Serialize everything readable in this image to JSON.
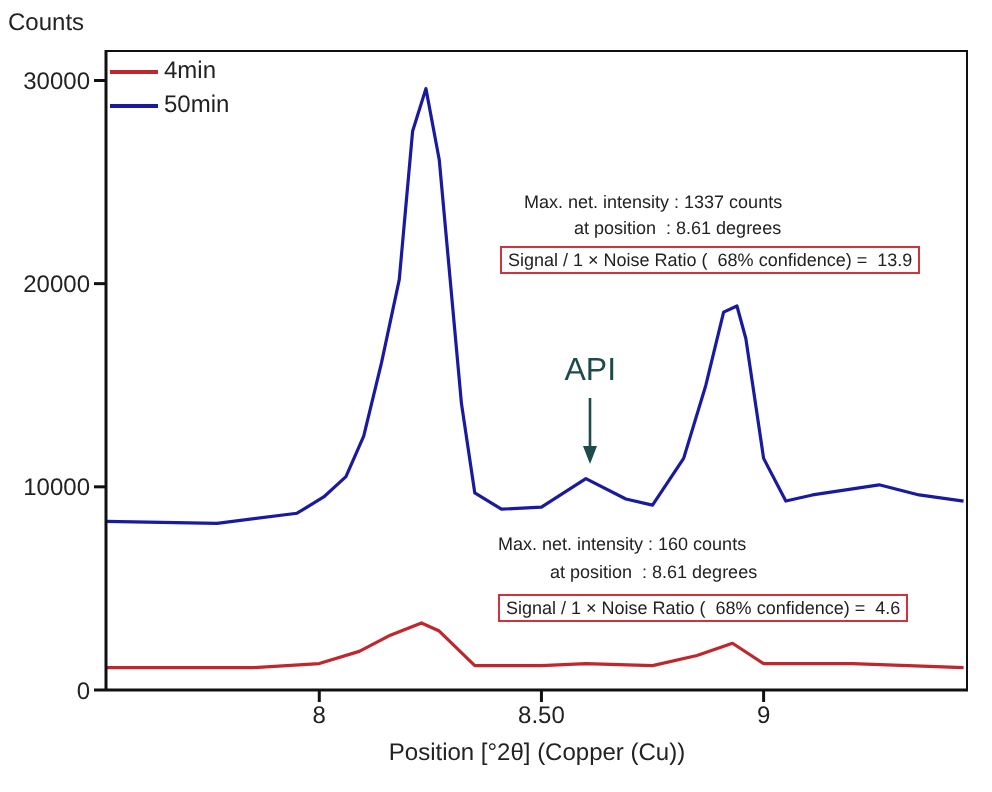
{
  "chart_data": {
    "type": "line",
    "xlabel": "Position [°2θ] (Copper (Cu))",
    "ylabel": "Counts",
    "xlim": [
      7.52,
      9.46
    ],
    "xticks": [
      8,
      {
        "value": 8.5,
        "label": "8.50"
      },
      9
    ],
    "ylim": [
      0,
      31500
    ],
    "yticks": [
      0,
      10000,
      20000,
      30000
    ],
    "grid": false,
    "legend": "top left",
    "marker": "none",
    "line_style": "solid",
    "series": [
      {
        "name": "4min",
        "color": "#c0272d",
        "x": [
          7.52,
          7.85,
          8.0,
          8.09,
          8.16,
          8.23,
          8.27,
          8.35,
          8.5,
          8.6,
          8.75,
          8.85,
          8.93,
          9.0,
          9.2,
          9.45
        ],
        "values": [
          1100,
          1100,
          1300,
          1900,
          2700,
          3300,
          2900,
          1200,
          1200,
          1300,
          1200,
          1700,
          2300,
          1300,
          1300,
          1100
        ]
      },
      {
        "name": "50min",
        "color": "#1a1aa0",
        "x": [
          7.52,
          7.77,
          7.95,
          8.01,
          8.06,
          8.1,
          8.14,
          8.18,
          8.21,
          8.24,
          8.27,
          8.32,
          8.35,
          8.41,
          8.5,
          8.6,
          8.69,
          8.75,
          8.82,
          8.87,
          8.91,
          8.94,
          8.96,
          9.0,
          9.05,
          9.11,
          9.26,
          9.35,
          9.45
        ],
        "values": [
          8300,
          8200,
          8700,
          9500,
          10500,
          12500,
          16100,
          20200,
          27500,
          29600,
          26100,
          14100,
          9700,
          8900,
          9000,
          10400,
          9400,
          9100,
          11400,
          15000,
          18600,
          18900,
          17300,
          11400,
          9300,
          9600,
          10100,
          9600,
          9300
        ]
      }
    ],
    "annotations": [
      "Max. net. intensity : 1337 counts",
      "at position  : 8.61 degrees",
      "Signal / 1 × Noise Ratio (  68% confidence) =  13.9",
      "Max. net. intensity : 160 counts",
      "at position  : 8.61 degrees",
      "Signal / 1 × Noise Ratio (  68% confidence) =  4.6",
      {
        "text": "API",
        "x": 8.61,
        "y": 10400
      }
    ]
  }
}
